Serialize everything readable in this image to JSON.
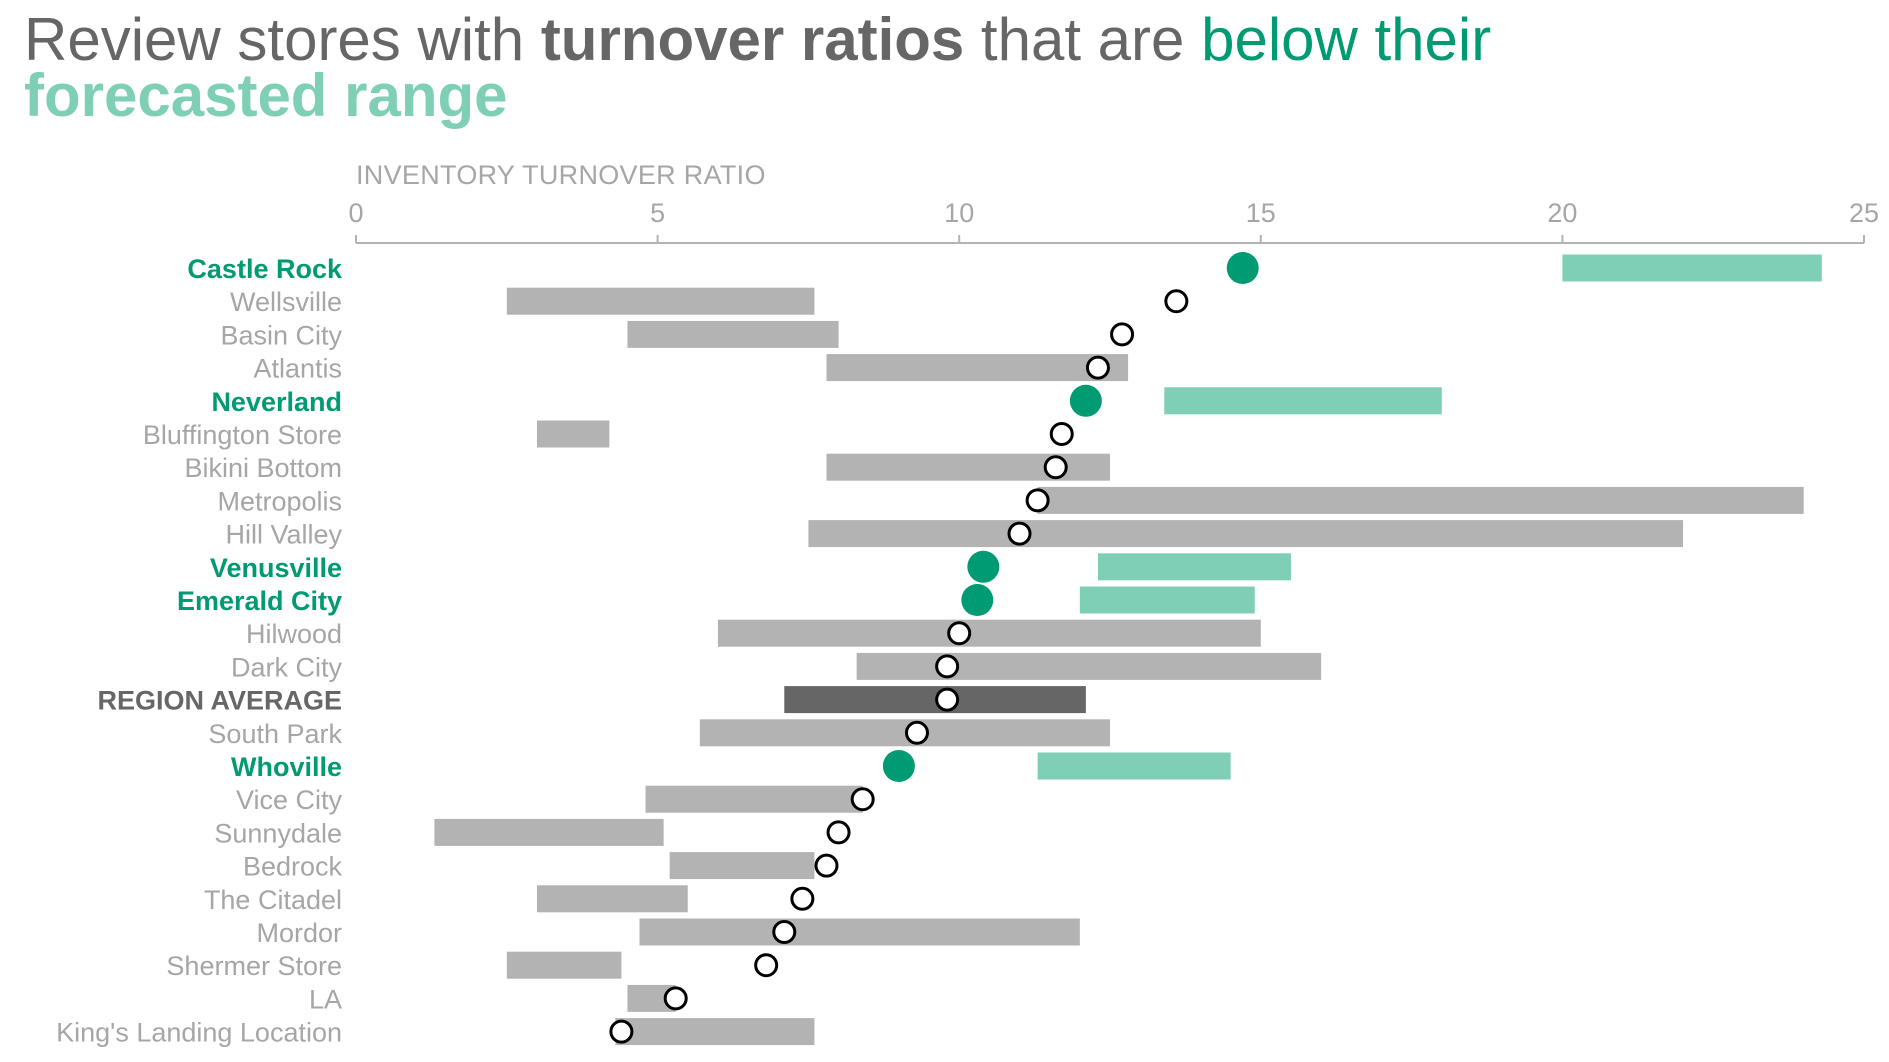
{
  "title": {
    "part1": "Review stores with ",
    "part2": "turnover ratios",
    "part3": " that are ",
    "part4": "below their",
    "part5": "forecasted range"
  },
  "colors": {
    "highlight_dot": "#009a73",
    "highlight_range": "#7ecfb6",
    "normal_range": "#b3b3b3",
    "average_range": "#666666",
    "label_gray": "#a6a6a6"
  },
  "chart_data": {
    "type": "range-dot",
    "xlabel": "INVENTORY TURNOVER RATIO",
    "xlim": [
      0,
      25
    ],
    "xticks": [
      0,
      5,
      10,
      15,
      20,
      25
    ],
    "grid": false,
    "rows": [
      {
        "name": "Castle Rock",
        "value": 14.7,
        "range": [
          20.0,
          24.3
        ],
        "status": "below"
      },
      {
        "name": "Wellsville",
        "value": 13.6,
        "range": [
          2.5,
          7.6
        ],
        "status": "normal"
      },
      {
        "name": "Basin City",
        "value": 12.7,
        "range": [
          4.5,
          8.0
        ],
        "status": "normal"
      },
      {
        "name": "Atlantis",
        "value": 12.3,
        "range": [
          7.8,
          12.8
        ],
        "status": "normal"
      },
      {
        "name": "Neverland",
        "value": 12.1,
        "range": [
          13.4,
          18.0
        ],
        "status": "below"
      },
      {
        "name": "Bluffington Store",
        "value": 11.7,
        "range": [
          3.0,
          4.2
        ],
        "status": "normal"
      },
      {
        "name": "Bikini Bottom",
        "value": 11.6,
        "range": [
          7.8,
          12.5
        ],
        "status": "normal"
      },
      {
        "name": "Metropolis",
        "value": 11.3,
        "range": [
          11.3,
          24.0
        ],
        "status": "normal"
      },
      {
        "name": "Hill Valley",
        "value": 11.0,
        "range": [
          7.5,
          22.0
        ],
        "status": "normal"
      },
      {
        "name": "Venusville",
        "value": 10.4,
        "range": [
          12.3,
          15.5
        ],
        "status": "below"
      },
      {
        "name": "Emerald City",
        "value": 10.3,
        "range": [
          12.0,
          14.9
        ],
        "status": "below"
      },
      {
        "name": "Hilwood",
        "value": 10.0,
        "range": [
          6.0,
          15.0
        ],
        "status": "normal"
      },
      {
        "name": "Dark City",
        "value": 9.8,
        "range": [
          8.3,
          16.0
        ],
        "status": "normal"
      },
      {
        "name": "REGION AVERAGE",
        "value": 9.8,
        "range": [
          7.1,
          12.1
        ],
        "status": "average"
      },
      {
        "name": "South Park",
        "value": 9.3,
        "range": [
          5.7,
          12.5
        ],
        "status": "normal"
      },
      {
        "name": "Whoville",
        "value": 9.0,
        "range": [
          11.3,
          14.5
        ],
        "status": "below"
      },
      {
        "name": "Vice City",
        "value": 8.4,
        "range": [
          4.8,
          8.4
        ],
        "status": "normal"
      },
      {
        "name": "Sunnydale",
        "value": 8.0,
        "range": [
          1.3,
          5.1
        ],
        "status": "normal"
      },
      {
        "name": "Bedrock",
        "value": 7.8,
        "range": [
          5.2,
          7.6
        ],
        "status": "normal"
      },
      {
        "name": "The Citadel",
        "value": 7.4,
        "range": [
          3.0,
          5.5
        ],
        "status": "normal"
      },
      {
        "name": "Mordor",
        "value": 7.1,
        "range": [
          4.7,
          12.0
        ],
        "status": "normal"
      },
      {
        "name": "Shermer Store",
        "value": 6.8,
        "range": [
          2.5,
          4.4
        ],
        "status": "normal"
      },
      {
        "name": "LA",
        "value": 5.3,
        "range": [
          4.5,
          5.3
        ],
        "status": "normal"
      },
      {
        "name": "King's Landing Location",
        "value": 4.4,
        "range": [
          4.3,
          7.6
        ],
        "status": "normal"
      }
    ]
  }
}
